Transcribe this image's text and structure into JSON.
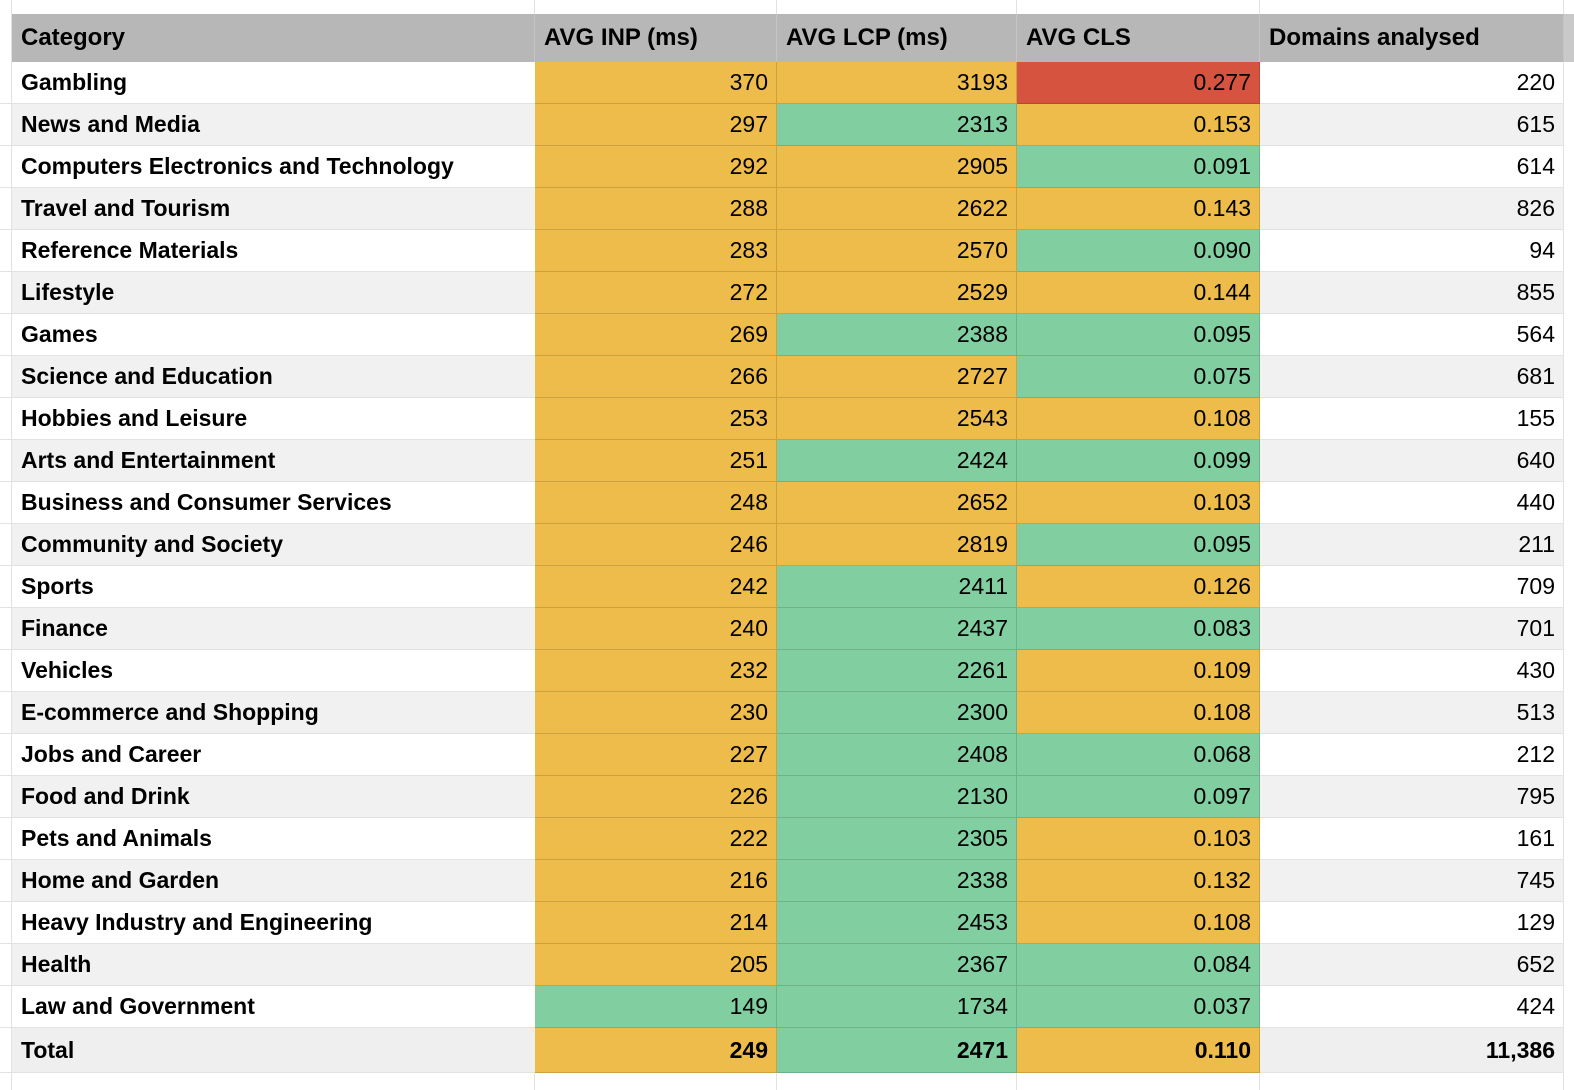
{
  "table": {
    "columns": [
      "Category",
      "AVG INP (ms)",
      "AVG LCP (ms)",
      "AVG CLS",
      "Domains analysed"
    ],
    "rows": [
      {
        "category": "Gambling",
        "inp": "370",
        "lcp": "3193",
        "cls": "0.277",
        "domains": "220",
        "inp_color": "yellow",
        "lcp_color": "yellow",
        "cls_color": "red"
      },
      {
        "category": "News and Media",
        "inp": "297",
        "lcp": "2313",
        "cls": "0.153",
        "domains": "615",
        "inp_color": "yellow",
        "lcp_color": "green",
        "cls_color": "yellow"
      },
      {
        "category": "Computers Electronics and Technology",
        "inp": "292",
        "lcp": "2905",
        "cls": "0.091",
        "domains": "614",
        "inp_color": "yellow",
        "lcp_color": "yellow",
        "cls_color": "green"
      },
      {
        "category": "Travel and Tourism",
        "inp": "288",
        "lcp": "2622",
        "cls": "0.143",
        "domains": "826",
        "inp_color": "yellow",
        "lcp_color": "yellow",
        "cls_color": "yellow"
      },
      {
        "category": "Reference Materials",
        "inp": "283",
        "lcp": "2570",
        "cls": "0.090",
        "domains": "94",
        "inp_color": "yellow",
        "lcp_color": "yellow",
        "cls_color": "green"
      },
      {
        "category": "Lifestyle",
        "inp": "272",
        "lcp": "2529",
        "cls": "0.144",
        "domains": "855",
        "inp_color": "yellow",
        "lcp_color": "yellow",
        "cls_color": "yellow"
      },
      {
        "category": "Games",
        "inp": "269",
        "lcp": "2388",
        "cls": "0.095",
        "domains": "564",
        "inp_color": "yellow",
        "lcp_color": "green",
        "cls_color": "green"
      },
      {
        "category": "Science and Education",
        "inp": "266",
        "lcp": "2727",
        "cls": "0.075",
        "domains": "681",
        "inp_color": "yellow",
        "lcp_color": "yellow",
        "cls_color": "green"
      },
      {
        "category": "Hobbies and Leisure",
        "inp": "253",
        "lcp": "2543",
        "cls": "0.108",
        "domains": "155",
        "inp_color": "yellow",
        "lcp_color": "yellow",
        "cls_color": "yellow"
      },
      {
        "category": "Arts and Entertainment",
        "inp": "251",
        "lcp": "2424",
        "cls": "0.099",
        "domains": "640",
        "inp_color": "yellow",
        "lcp_color": "green",
        "cls_color": "green"
      },
      {
        "category": "Business and Consumer Services",
        "inp": "248",
        "lcp": "2652",
        "cls": "0.103",
        "domains": "440",
        "inp_color": "yellow",
        "lcp_color": "yellow",
        "cls_color": "yellow"
      },
      {
        "category": "Community and Society",
        "inp": "246",
        "lcp": "2819",
        "cls": "0.095",
        "domains": "211",
        "inp_color": "yellow",
        "lcp_color": "yellow",
        "cls_color": "green"
      },
      {
        "category": "Sports",
        "inp": "242",
        "lcp": "2411",
        "cls": "0.126",
        "domains": "709",
        "inp_color": "yellow",
        "lcp_color": "green",
        "cls_color": "yellow"
      },
      {
        "category": "Finance",
        "inp": "240",
        "lcp": "2437",
        "cls": "0.083",
        "domains": "701",
        "inp_color": "yellow",
        "lcp_color": "green",
        "cls_color": "green"
      },
      {
        "category": "Vehicles",
        "inp": "232",
        "lcp": "2261",
        "cls": "0.109",
        "domains": "430",
        "inp_color": "yellow",
        "lcp_color": "green",
        "cls_color": "yellow"
      },
      {
        "category": "E-commerce and Shopping",
        "inp": "230",
        "lcp": "2300",
        "cls": "0.108",
        "domains": "513",
        "inp_color": "yellow",
        "lcp_color": "green",
        "cls_color": "yellow"
      },
      {
        "category": "Jobs and Career",
        "inp": "227",
        "lcp": "2408",
        "cls": "0.068",
        "domains": "212",
        "inp_color": "yellow",
        "lcp_color": "green",
        "cls_color": "green"
      },
      {
        "category": "Food and Drink",
        "inp": "226",
        "lcp": "2130",
        "cls": "0.097",
        "domains": "795",
        "inp_color": "yellow",
        "lcp_color": "green",
        "cls_color": "green"
      },
      {
        "category": "Pets and Animals",
        "inp": "222",
        "lcp": "2305",
        "cls": "0.103",
        "domains": "161",
        "inp_color": "yellow",
        "lcp_color": "green",
        "cls_color": "yellow"
      },
      {
        "category": "Home and Garden",
        "inp": "216",
        "lcp": "2338",
        "cls": "0.132",
        "domains": "745",
        "inp_color": "yellow",
        "lcp_color": "green",
        "cls_color": "yellow"
      },
      {
        "category": "Heavy Industry and Engineering",
        "inp": "214",
        "lcp": "2453",
        "cls": "0.108",
        "domains": "129",
        "inp_color": "yellow",
        "lcp_color": "green",
        "cls_color": "yellow"
      },
      {
        "category": "Health",
        "inp": "205",
        "lcp": "2367",
        "cls": "0.084",
        "domains": "652",
        "inp_color": "yellow",
        "lcp_color": "green",
        "cls_color": "green"
      },
      {
        "category": "Law and Government",
        "inp": "149",
        "lcp": "1734",
        "cls": "0.037",
        "domains": "424",
        "inp_color": "green",
        "lcp_color": "green",
        "cls_color": "green"
      }
    ],
    "total": {
      "category": "Total",
      "inp": "249",
      "lcp": "2471",
      "cls": "0.110",
      "domains": "11,386",
      "inp_color": "yellow",
      "lcp_color": "green",
      "cls_color": "yellow"
    }
  },
  "colors": {
    "yellow": "#eebc4b",
    "green": "#81cfa1",
    "red": "#d6533f",
    "header_bg": "#b7b7b7",
    "row_alt": "#f1f1f1",
    "total_bg": "#efefef",
    "gridline": "#e2e2e2"
  }
}
